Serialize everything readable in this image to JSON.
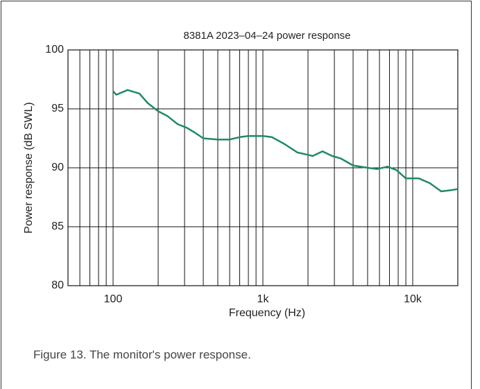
{
  "chart_data": {
    "type": "line",
    "title": "8381A 2023–04–24 power response",
    "x_label": "Frequency (Hz)",
    "y_label": "Power response (dB SWL)",
    "xscale": "log",
    "xlim": [
      50,
      20000
    ],
    "ylim": [
      80,
      100
    ],
    "xticks": [
      {
        "value": 100,
        "label": "100"
      },
      {
        "value": 1000,
        "label": "1k"
      },
      {
        "value": 10000,
        "label": "10k"
      }
    ],
    "xminor_ticks": [
      60,
      70,
      80,
      90,
      200,
      300,
      400,
      500,
      600,
      700,
      800,
      900,
      2000,
      3000,
      4000,
      5000,
      6000,
      7000,
      8000,
      9000
    ],
    "yticks": [
      80,
      85,
      90,
      95,
      100
    ],
    "grid": true,
    "series": [
      {
        "name": "Power response",
        "color": "#1e8a66",
        "x": [
          100,
          105,
          125,
          150,
          170,
          200,
          230,
          270,
          310,
          350,
          400,
          500,
          600,
          700,
          800,
          1000,
          1150,
          1400,
          1700,
          2000,
          2150,
          2500,
          2900,
          3300,
          4000,
          5000,
          5800,
          6800,
          7800,
          9000,
          10000,
          11000,
          13000,
          15500,
          18000,
          20000
        ],
        "values": [
          96.5,
          96.2,
          96.6,
          96.3,
          95.5,
          94.8,
          94.4,
          93.7,
          93.4,
          93.0,
          92.5,
          92.4,
          92.4,
          92.6,
          92.7,
          92.7,
          92.6,
          92.0,
          91.3,
          91.1,
          91.0,
          91.4,
          91.0,
          90.8,
          90.2,
          90.0,
          89.9,
          90.1,
          89.8,
          89.1,
          89.1,
          89.1,
          88.7,
          88.0,
          88.1,
          88.2
        ]
      }
    ]
  },
  "caption": "Figure 13. The monitor's power response."
}
